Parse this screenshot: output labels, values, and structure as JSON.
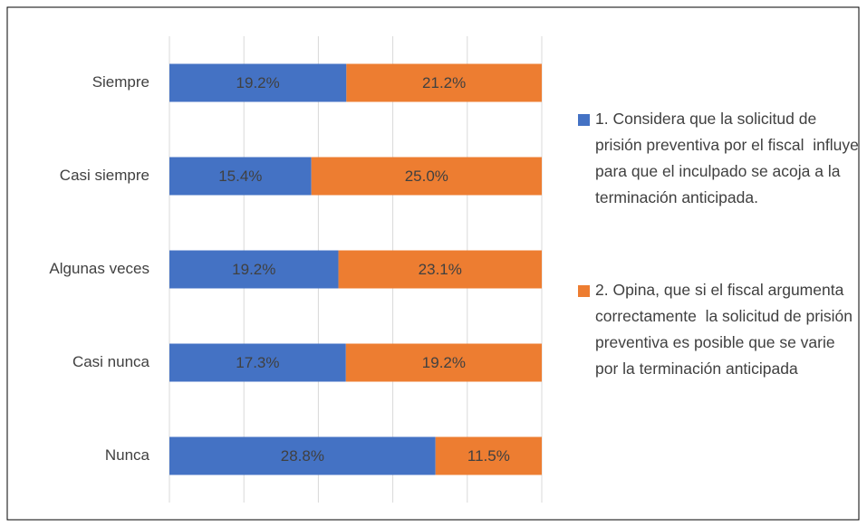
{
  "chart_data": {
    "type": "bar",
    "orientation": "horizontal",
    "stacking": "percent",
    "categories": [
      "Siempre",
      "Casi siempre",
      "Algunas veces",
      "Casi nunca",
      "Nunca"
    ],
    "series": [
      {
        "name": "1. Considera que la solicitud de prisión preventiva por el fiscal  influye para que el inculpado se acoja a la terminación anticipada.",
        "color": "#4472c4",
        "values": [
          19.2,
          15.4,
          19.2,
          17.3,
          28.8
        ],
        "value_labels": [
          "19.2%",
          "15.4%",
          "19.2%",
          "17.3%",
          "28.8%"
        ]
      },
      {
        "name": "2. Opina, que si el fiscal argumenta correctamente  la solicitud de prisión preventiva es posible que se varie por la terminación anticipada",
        "color": "#ed7d31",
        "values": [
          21.2,
          25.0,
          23.1,
          19.2,
          11.5
        ],
        "value_labels": [
          "21.2%",
          "25.0%",
          "23.1%",
          "19.2%",
          "11.5%"
        ]
      }
    ],
    "xlim": [
      0,
      100
    ],
    "xticks": [
      0,
      20,
      40,
      60,
      80,
      100
    ],
    "grid": true,
    "legend": "right"
  }
}
